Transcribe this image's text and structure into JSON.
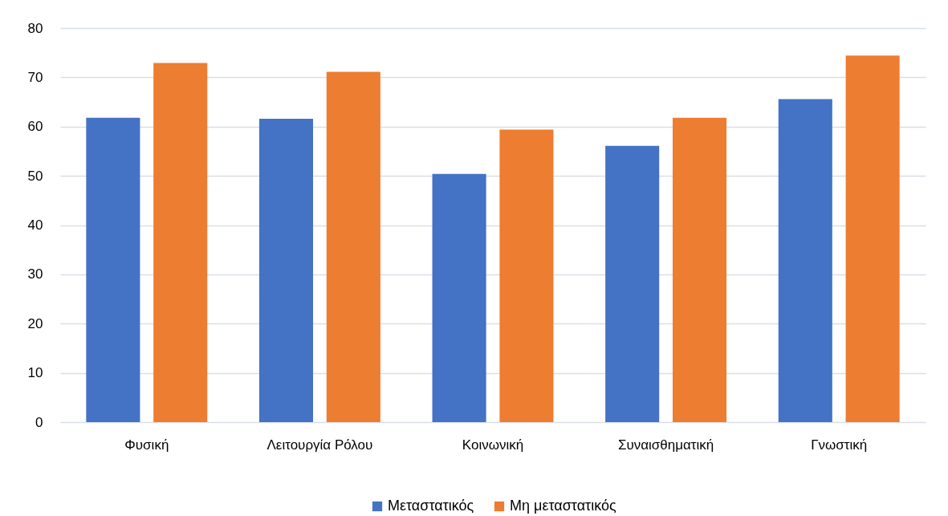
{
  "chart_data": {
    "type": "bar",
    "categories": [
      "Φυσική",
      "Λειτουργία Ρόλου",
      "Κοινωνική",
      "Συναισθηματική",
      "Γνωστική"
    ],
    "series": [
      {
        "name": "Μεταστατικός",
        "color": "#4472c4",
        "values": [
          61.8,
          61.6,
          50.4,
          56.1,
          65.6
        ]
      },
      {
        "name": "Μη μεταστατικός",
        "color": "#ed7d31",
        "values": [
          72.9,
          71.1,
          59.4,
          61.8,
          74.4
        ]
      }
    ],
    "ylim": [
      0,
      80
    ],
    "yticks": [
      0,
      10,
      20,
      30,
      40,
      50,
      60,
      70,
      80
    ],
    "grid": true,
    "legend": "bottom"
  }
}
